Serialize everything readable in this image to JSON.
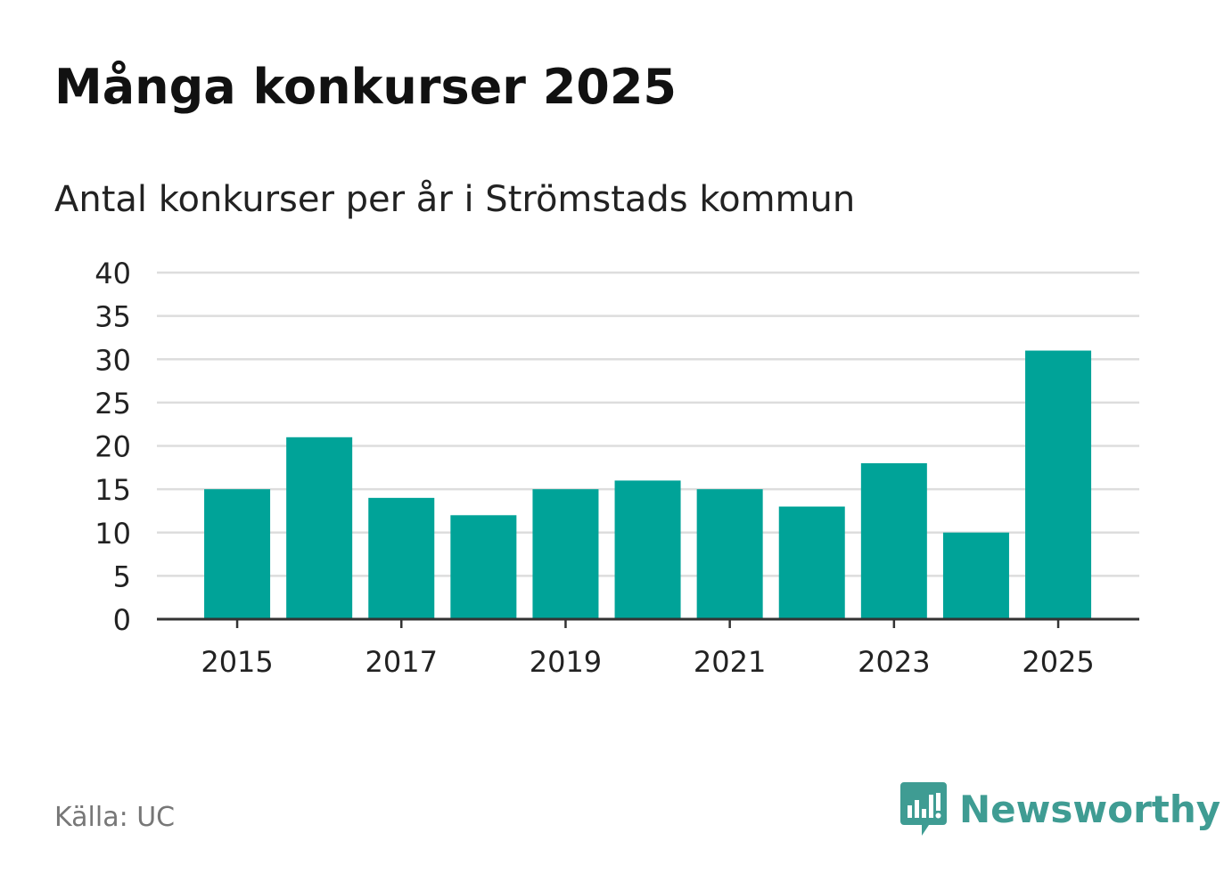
{
  "title": "Många konkurser 2025",
  "subtitle": "Antal konkurser per år i Strömstads kommun",
  "source": "Källa: UC",
  "brand": {
    "name": "Newsworthy",
    "logo_icon": "chart-speech-bubble-icon",
    "color": "#3f9c93"
  },
  "colors": {
    "bar": "#00a398",
    "grid": "#dddddd",
    "axis": "#333333",
    "text": "#222222"
  },
  "chart_data": {
    "type": "bar",
    "categories": [
      "2015",
      "2016",
      "2017",
      "2018",
      "2019",
      "2020",
      "2021",
      "2022",
      "2023",
      "2024",
      "2025"
    ],
    "values": [
      15,
      21,
      14,
      12,
      15,
      16,
      15,
      13,
      18,
      10,
      31
    ],
    "x_tick_labels": [
      "2015",
      "2017",
      "2019",
      "2021",
      "2023",
      "2025"
    ],
    "y_ticks": [
      0,
      5,
      10,
      15,
      20,
      25,
      30,
      35,
      40
    ],
    "ylim": [
      0,
      40
    ],
    "grid": true,
    "legend": "none"
  }
}
